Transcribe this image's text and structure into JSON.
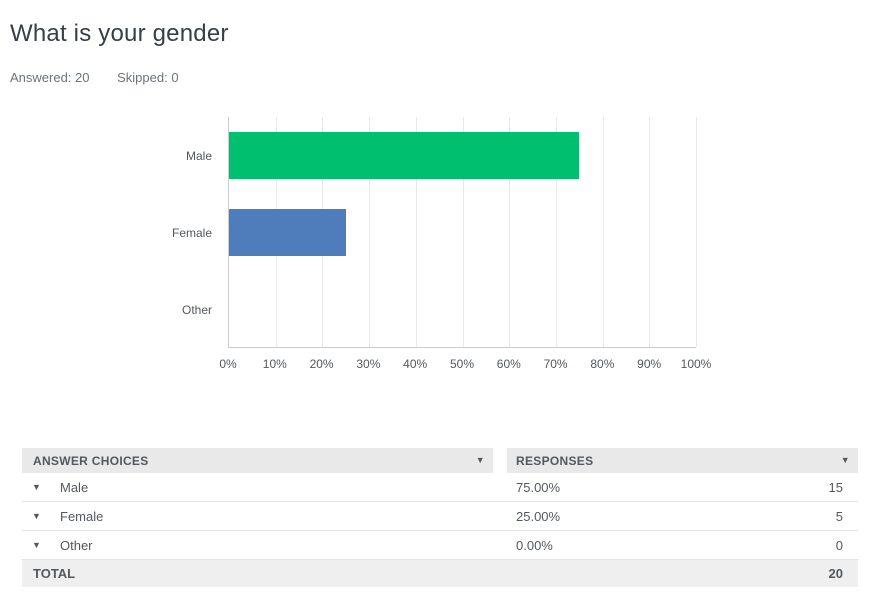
{
  "page": {
    "title": "What is your gender"
  },
  "stats": {
    "answered": "Answered: 20",
    "skipped": "Skipped: 0"
  },
  "icons": {
    "caret_down": "▼"
  },
  "chart_data": {
    "type": "bar",
    "orientation": "horizontal",
    "categories": [
      "Male",
      "Female",
      "Other"
    ],
    "values": [
      75,
      25,
      0
    ],
    "colors": [
      "#00bf6f",
      "#4f7cba",
      "#00bf6f"
    ],
    "x_ticks": [
      "0%",
      "10%",
      "20%",
      "30%",
      "40%",
      "50%",
      "60%",
      "70%",
      "80%",
      "90%",
      "100%"
    ],
    "xlim": [
      0,
      100
    ],
    "grid": true,
    "legend": false,
    "title": ""
  },
  "table": {
    "columns": [
      {
        "label": "ANSWER CHOICES"
      },
      {
        "label": "RESPONSES"
      }
    ],
    "rows": [
      {
        "choice": "Male",
        "percent": "75.00%",
        "count": "15"
      },
      {
        "choice": "Female",
        "percent": "25.00%",
        "count": "5"
      },
      {
        "choice": "Other",
        "percent": "0.00%",
        "count": "0"
      }
    ],
    "total_label": "TOTAL",
    "total_value": "20"
  }
}
